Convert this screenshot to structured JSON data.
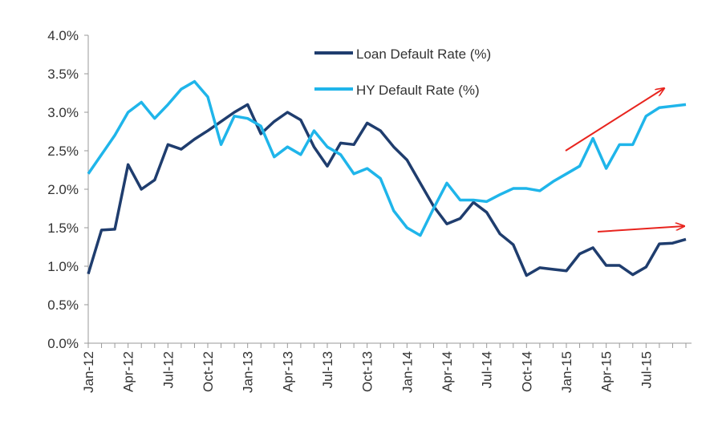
{
  "chart_data": {
    "type": "line",
    "categories": [
      "Jan-12",
      null,
      null,
      "Apr-12",
      null,
      null,
      "Jul-12",
      null,
      null,
      "Oct-12",
      null,
      null,
      "Jan-13",
      null,
      null,
      "Apr-13",
      null,
      null,
      "Jul-13",
      null,
      null,
      "Oct-13",
      null,
      null,
      "Jan-14",
      null,
      null,
      "Apr-14",
      null,
      null,
      "Jul-14",
      null,
      null,
      "Oct-14",
      null,
      null,
      "Jan-15",
      null,
      null,
      "Apr-15",
      null,
      null,
      "Jul-15",
      null,
      null,
      null
    ],
    "series": [
      {
        "name": "Loan Default Rate (%)",
        "color": "#1f3d6e",
        "values": [
          0.9,
          1.47,
          1.48,
          2.32,
          2.0,
          2.12,
          2.58,
          2.52,
          2.65,
          2.76,
          2.88,
          3.0,
          3.1,
          2.72,
          2.88,
          3.0,
          2.9,
          2.55,
          2.3,
          2.6,
          2.58,
          2.86,
          2.76,
          2.55,
          2.38,
          2.08,
          1.78,
          1.55,
          1.62,
          1.83,
          1.7,
          1.42,
          1.28,
          0.88,
          0.98,
          0.96,
          0.94,
          1.16,
          1.24,
          1.01,
          1.01,
          0.89,
          0.99,
          1.29,
          1.3,
          1.35
        ]
      },
      {
        "name": "HY Default Rate (%)",
        "color": "#1fb5ea",
        "values": [
          2.2,
          2.45,
          2.7,
          3.0,
          3.13,
          2.92,
          3.1,
          3.3,
          3.4,
          3.2,
          2.58,
          2.95,
          2.92,
          2.82,
          2.42,
          2.55,
          2.45,
          2.76,
          2.55,
          2.45,
          2.2,
          2.27,
          2.14,
          1.72,
          1.5,
          1.4,
          1.75,
          2.08,
          1.86,
          1.86,
          1.84,
          1.93,
          2.01,
          2.01,
          1.98,
          2.1,
          2.2,
          2.3,
          2.66,
          2.27,
          2.58,
          2.58,
          2.95,
          3.06,
          3.08,
          3.1
        ]
      }
    ],
    "ylim": [
      0,
      4
    ],
    "yticks": [
      {
        "value": 0,
        "label": "0.0%"
      },
      {
        "value": 0.5,
        "label": "0.5%"
      },
      {
        "value": 1,
        "label": "1.0%"
      },
      {
        "value": 1.5,
        "label": "1.5%"
      },
      {
        "value": 2,
        "label": "2.0%"
      },
      {
        "value": 2.5,
        "label": "2.5%"
      },
      {
        "value": 3,
        "label": "3.0%"
      },
      {
        "value": 3.5,
        "label": "3.5%"
      },
      {
        "value": 4,
        "label": "4.0%"
      }
    ],
    "grid": false
  }
}
